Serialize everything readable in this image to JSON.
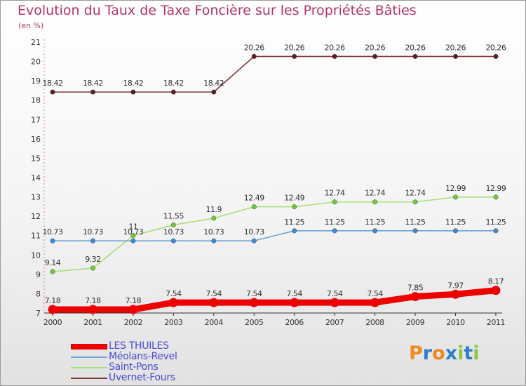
{
  "title": "Evolution du Taux de Taxe Foncière sur les Propriétés Bâties",
  "unit_label": "(en %)",
  "logo": {
    "letters": [
      "P",
      "r",
      "o",
      "x",
      "i",
      "t",
      "i"
    ],
    "colors": [
      "#f08a24",
      "#2f7dc8",
      "#f08a24",
      "#2f7dc8",
      "#8ec63f",
      "#2f7dc8",
      "#8ec63f"
    ]
  },
  "chart_data": {
    "type": "line",
    "title": "Evolution du Taux de Taxe Foncière sur les Propriétés Bâties",
    "ylabel": "(en %)",
    "xlabel": "",
    "x": [
      "2000",
      "2001",
      "2002",
      "2003",
      "2004",
      "2005",
      "2006",
      "2007",
      "2008",
      "2009",
      "2010",
      "2011"
    ],
    "y_ticks": [
      "7",
      "8",
      "9",
      "10",
      "11",
      "12",
      "13",
      "14",
      "15",
      "16",
      "17",
      "18",
      "19",
      "20",
      "21"
    ],
    "ylim": [
      7,
      21
    ],
    "grid": false,
    "legend_position": "bottom-left",
    "series": [
      {
        "name": "Uvernet-Fours",
        "color": "#7b3b3b",
        "marker": "#5e1c1c",
        "values": [
          18.42,
          18.42,
          18.42,
          18.42,
          18.42,
          20.26,
          20.26,
          20.26,
          20.26,
          20.26,
          20.26,
          20.26
        ],
        "labels": [
          "18.42",
          "18.42",
          "18.42",
          "18.42",
          "18.42",
          "20.26",
          "20.26",
          "20.26",
          "20.26",
          "20.26",
          "20.26",
          "20.26"
        ]
      },
      {
        "name": "Saint-Pons",
        "color": "#a8e07a",
        "marker": "#72c83a",
        "values": [
          9.14,
          9.32,
          11,
          11.55,
          11.9,
          12.49,
          12.49,
          12.74,
          12.74,
          12.74,
          12.99,
          12.99
        ],
        "labels": [
          "9.14",
          "9.32",
          "11",
          "11.55",
          "11.9",
          "12.49",
          "12.49",
          "12.74",
          "12.74",
          "12.74",
          "12.99",
          "12.99"
        ]
      },
      {
        "name": "Méolans-Revel",
        "color": "#6fa3d4",
        "marker": "#3a8ad8",
        "values": [
          10.73,
          10.73,
          10.73,
          10.73,
          10.73,
          10.73,
          11.25,
          11.25,
          11.25,
          11.25,
          11.25,
          11.25
        ],
        "labels": [
          "10.73",
          "10.73",
          "10.73",
          "10.73",
          "10.73",
          "10.73",
          "11.25",
          "11.25",
          "11.25",
          "11.25",
          "11.25",
          "11.25"
        ]
      },
      {
        "name": "LES THUILES",
        "color": "#ee0000",
        "marker": "#ee0000",
        "values": [
          7.18,
          7.18,
          7.18,
          7.54,
          7.54,
          7.54,
          7.54,
          7.54,
          7.54,
          7.85,
          7.97,
          8.17
        ],
        "labels": [
          "7.18",
          "7.18",
          "7.18",
          "7.54",
          "7.54",
          "7.54",
          "7.54",
          "7.54",
          "7.54",
          "7.85",
          "7.97",
          "8.17"
        ]
      }
    ],
    "legend": [
      {
        "name": "LES THUILES",
        "color": "#ee0000",
        "thickness": "thick"
      },
      {
        "name": "Méolans-Revel",
        "color": "#6fa3d4",
        "thickness": "thin"
      },
      {
        "name": "Saint-Pons",
        "color": "#a8e07a",
        "thickness": "thin"
      },
      {
        "name": "Uvernet-Fours",
        "color": "#7b3b3b",
        "thickness": "thin"
      }
    ]
  }
}
